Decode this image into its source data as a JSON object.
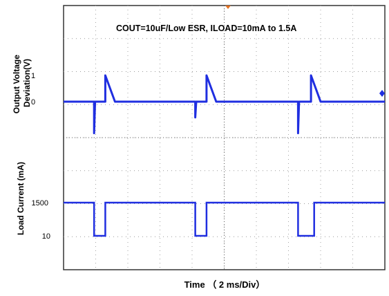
{
  "chart_data": [
    {
      "type": "line",
      "title": "COUT=10uF/Low ESR,  ILOAD=10mA to 1.5A",
      "ylabel": "Output Voltage Deviation(V)",
      "yticks": [
        "1",
        "0"
      ],
      "ylim": [
        -1.5,
        3.0
      ],
      "series": [
        {
          "color": "#1f2ee0",
          "points": [
            [
              0.0,
              0.0
            ],
            [
              0.95,
              0.0
            ],
            [
              0.95,
              -1.2
            ],
            [
              0.98,
              0.0
            ],
            [
              1.3,
              0.0
            ],
            [
              1.3,
              1.0
            ],
            [
              1.6,
              0.0
            ],
            [
              2.5,
              0.0
            ],
            [
              4.1,
              0.0
            ],
            [
              4.1,
              -0.6
            ],
            [
              4.13,
              0.0
            ],
            [
              4.45,
              0.0
            ],
            [
              4.45,
              1.0
            ],
            [
              4.75,
              0.0
            ],
            [
              7.3,
              0.0
            ],
            [
              7.3,
              -1.2
            ],
            [
              7.33,
              0.0
            ],
            [
              7.7,
              0.0
            ],
            [
              7.7,
              1.0
            ],
            [
              8.0,
              0.0
            ],
            [
              10.0,
              0.0
            ]
          ]
        }
      ]
    },
    {
      "type": "line",
      "ylabel": "Load Current (mA)",
      "xlabel": "Time  （ 2 ms/Div）",
      "yticks": [
        "1500",
        "10"
      ],
      "series": [
        {
          "color": "#1f2ee0",
          "points": [
            [
              0.0,
              1500
            ],
            [
              0.95,
              1500
            ],
            [
              0.95,
              10
            ],
            [
              1.3,
              10
            ],
            [
              1.3,
              1500
            ],
            [
              4.1,
              1500
            ],
            [
              4.1,
              10
            ],
            [
              4.45,
              10
            ],
            [
              4.45,
              1500
            ],
            [
              7.3,
              1500
            ],
            [
              7.3,
              10
            ],
            [
              7.8,
              10
            ],
            [
              7.8,
              1500
            ],
            [
              10.0,
              1500
            ]
          ]
        }
      ]
    }
  ],
  "x_divisions": 10
}
